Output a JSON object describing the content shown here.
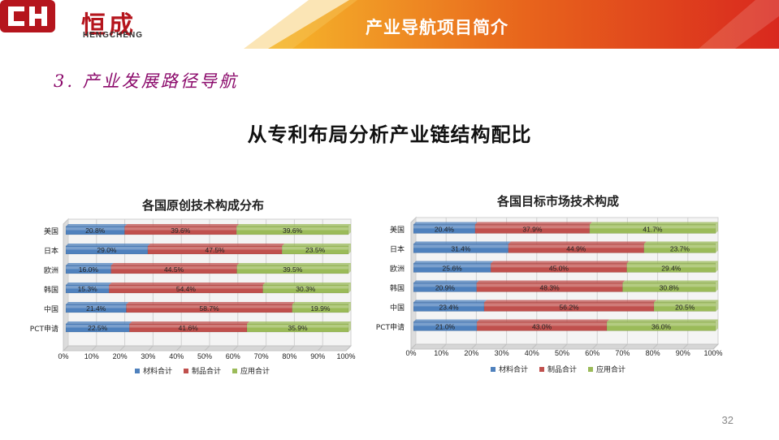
{
  "header": {
    "logo_cn": "恒成",
    "logo_en": "HENGCHENG",
    "title": "产业导航项目简介",
    "brand_color": "#b5151d",
    "banner_colors": [
      "#f6b82b",
      "#e8651c",
      "#d9281e"
    ]
  },
  "section_heading": "3. 产业发展路径导航",
  "main_title": "从专利布局分析产业链结构配比",
  "page_number": "32",
  "chart_data": [
    {
      "type": "bar",
      "orientation": "horizontal",
      "stacked": "percent",
      "title": "各国原创技术构成分布",
      "categories": [
        "美国",
        "日本",
        "欧洲",
        "韩国",
        "中国",
        "PCT申请"
      ],
      "series": [
        {
          "name": "材料合计",
          "color": "#4f81bd",
          "values": [
            20.8,
            29.0,
            16.0,
            15.3,
            21.4,
            22.5
          ],
          "labels": [
            "20.8%",
            "29.0%",
            "16.0%",
            "15.3%",
            "21.4%",
            "22.5%"
          ]
        },
        {
          "name": "制品合计",
          "color": "#c0504d",
          "values": [
            39.6,
            47.5,
            44.5,
            54.4,
            58.7,
            41.6
          ],
          "labels": [
            "39.6%",
            "47.5%",
            "44.5%",
            "54.4%",
            "58.7%",
            "41.6%"
          ]
        },
        {
          "name": "应用合计",
          "color": "#9bbb59",
          "values": [
            39.6,
            23.5,
            39.5,
            30.3,
            19.9,
            35.9
          ],
          "labels": [
            "39.6%",
            "23.5%",
            "39.5%",
            "30.3%",
            "19.9%",
            "35.9%"
          ]
        }
      ],
      "xlim": [
        0,
        100
      ],
      "xticks": [
        "0%",
        "10%",
        "20%",
        "30%",
        "40%",
        "50%",
        "60%",
        "70%",
        "80%",
        "90%",
        "100%"
      ],
      "grid": true,
      "legend": "bottom"
    },
    {
      "type": "bar",
      "orientation": "horizontal",
      "stacked": "percent",
      "title": "各国目标市场技术构成",
      "categories": [
        "美国",
        "日本",
        "欧洲",
        "韩国",
        "中国",
        "PCT申请"
      ],
      "series": [
        {
          "name": "材料合计",
          "color": "#4f81bd",
          "values": [
            20.4,
            31.4,
            25.6,
            20.9,
            23.4,
            21.0
          ],
          "labels": [
            "20.4%",
            "31.4%",
            "25.6%",
            "20.9%",
            "23.4%",
            "21.0%"
          ]
        },
        {
          "name": "制品合计",
          "color": "#c0504d",
          "values": [
            37.9,
            44.9,
            45.0,
            48.3,
            56.2,
            43.0
          ],
          "labels": [
            "37.9%",
            "44.9%",
            "45.0%",
            "48.3%",
            "56.2%",
            "43.0%"
          ]
        },
        {
          "name": "应用合计",
          "color": "#9bbb59",
          "values": [
            41.7,
            23.7,
            29.4,
            30.8,
            20.5,
            36.0
          ],
          "labels": [
            "41.7%",
            "23.7%",
            "29.4%",
            "30.8%",
            "20.5%",
            "36.0%"
          ]
        }
      ],
      "xlim": [
        0,
        100
      ],
      "xticks": [
        "0%",
        "10%",
        "20%",
        "30%",
        "40%",
        "50%",
        "60%",
        "70%",
        "80%",
        "90%",
        "100%"
      ],
      "grid": true,
      "legend": "bottom"
    }
  ]
}
